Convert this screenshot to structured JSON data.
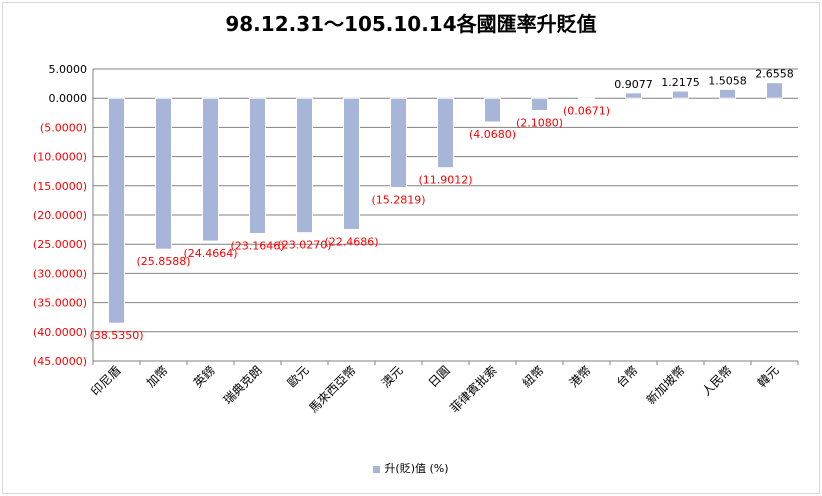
{
  "chart_data": {
    "type": "bar",
    "title": "98.12.31～105.10.14各國匯率升貶值",
    "categories": [
      "印尼盾",
      "加幣",
      "英鎊",
      "瑞典克朗",
      "歐元",
      "馬來西亞幣",
      "澳元",
      "日圓",
      "菲律賓批索",
      "紐幣",
      "港幣",
      "台幣",
      "新加坡幣",
      "人民幣",
      "韓元"
    ],
    "series": [
      {
        "name": "升(貶)值 (%)",
        "values": [
          -38.535,
          -25.8588,
          -24.4664,
          -23.1646,
          -23.027,
          -22.4686,
          -15.2819,
          -11.9012,
          -4.068,
          -2.108,
          -0.0671,
          0.9077,
          1.2175,
          1.5058,
          2.6558
        ],
        "labels": [
          "(38.5350)",
          "(25.8588)",
          "(24.4664)",
          "(23.1646)",
          "(23.0270)",
          "(22.4686)",
          "(15.2819)",
          "(11.9012)",
          "(4.0680)",
          "(2.1080)",
          "(0.0671)",
          "0.9077",
          "1.2175",
          "1.5058",
          "2.6558"
        ]
      }
    ],
    "ylim": [
      -45,
      5
    ],
    "yticks": [
      5,
      0,
      -5,
      -10,
      -15,
      -20,
      -25,
      -30,
      -35,
      -40,
      -45
    ],
    "ytick_labels": [
      "5.0000",
      "0.0000",
      "(5.0000)",
      "(10.0000)",
      "(15.0000)",
      "(20.0000)",
      "(25.0000)",
      "(30.0000)",
      "(35.0000)",
      "(40.0000)",
      "(45.0000)"
    ],
    "grid": true,
    "legend": "bottom",
    "colors": {
      "bar": "#a7b5d8",
      "negative_label": "#ff0000",
      "positive_label": "#000000",
      "grid": "#808080"
    }
  }
}
